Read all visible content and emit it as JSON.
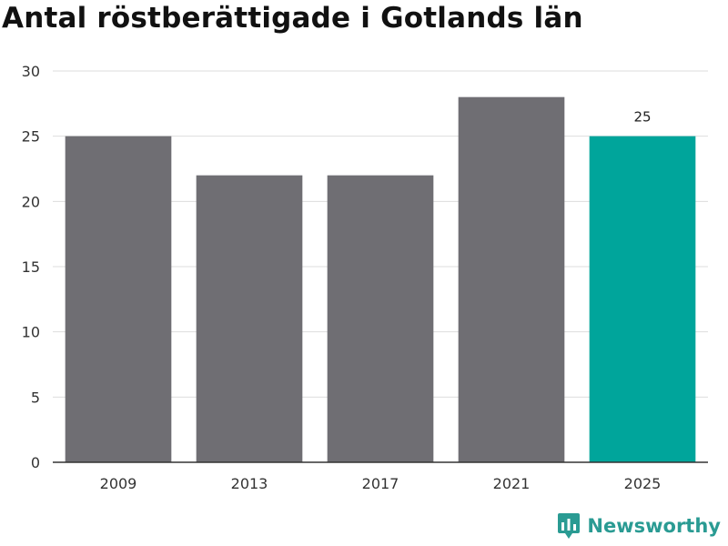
{
  "title": "Antal röstberättigade i Gotlands län",
  "brand": {
    "name": "Newsworthy",
    "icon": "newsworthy-logo-icon",
    "color": "#2a9b93"
  },
  "colors": {
    "bar": "#6f6e73",
    "highlight": "#00a59b",
    "grid": "#dddddd",
    "axis": "#333333"
  },
  "chart_data": {
    "type": "bar",
    "title": "Antal röstberättigade i Gotlands län",
    "categories": [
      "2009",
      "2013",
      "2017",
      "2021",
      "2025"
    ],
    "values": [
      25,
      22,
      22,
      28,
      25
    ],
    "highlight_index": 4,
    "data_labels": [
      {
        "index": 4,
        "text": "25"
      }
    ],
    "ylim": [
      0,
      30
    ],
    "yticks": [
      0,
      5,
      10,
      15,
      20,
      25,
      30
    ],
    "grid": true,
    "xlabel": "",
    "ylabel": ""
  }
}
